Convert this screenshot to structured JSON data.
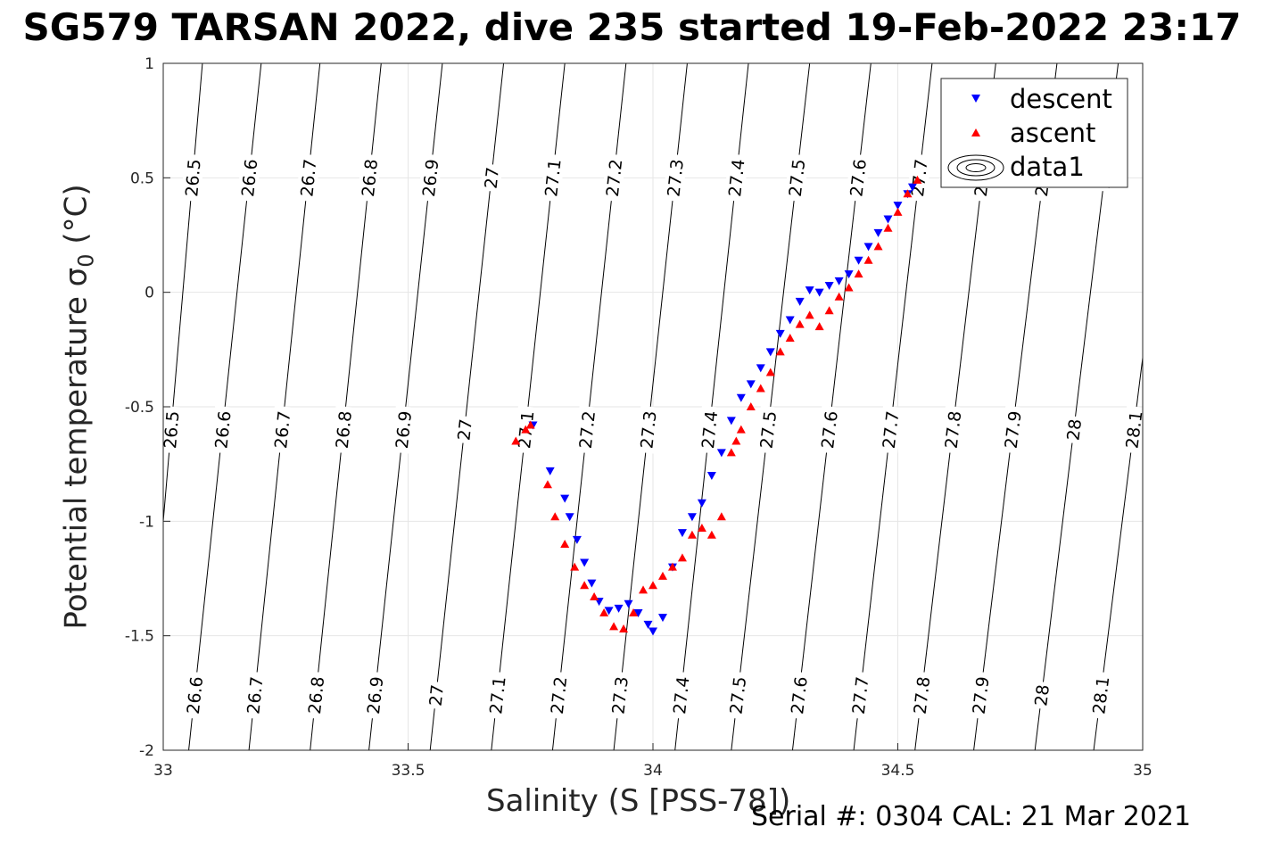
{
  "chart_data": {
    "type": "scatter",
    "title": "SG579 TARSAN 2022, dive 235 started 19-Feb-2022 23:17",
    "xlabel": "Salinity (S [PSS-78])",
    "ylabel_main": "Potential temperature ",
    "ylabel_sym": "σ",
    "ylabel_sub": "0",
    "ylabel_unit": " (°C)",
    "footer": "Serial #: 0304  CAL: 21 Mar 2021",
    "xlim": [
      33,
      35
    ],
    "ylim": [
      -2,
      1
    ],
    "xticks": [
      "33",
      "33.5",
      "34",
      "34.5",
      "35"
    ],
    "yticks": [
      "1",
      "0.5",
      "0",
      "-0.5",
      "-1",
      "-1.5",
      "-2"
    ],
    "grid": true,
    "legend_position": "top-right",
    "legend": [
      "descent",
      "ascent",
      "data1"
    ],
    "contours": {
      "levels": [
        "26.5",
        "26.6",
        "26.7",
        "26.8",
        "26.9",
        "27",
        "27.1",
        "27.2",
        "27.3",
        "27.4",
        "27.5",
        "27.6",
        "27.7",
        "27.8",
        "27.9",
        "28",
        "28.1"
      ],
      "s_at_theta_1": [
        33.08,
        33.2,
        33.32,
        33.445,
        33.57,
        33.695,
        33.82,
        33.945,
        34.07,
        34.195,
        34.32,
        34.445,
        34.57,
        34.7,
        34.825,
        34.95,
        35.075
      ],
      "s_at_theta_minus2": [
        32.96,
        33.052,
        33.175,
        33.3,
        33.42,
        33.545,
        33.67,
        33.795,
        33.92,
        34.045,
        34.16,
        34.285,
        34.41,
        34.535,
        34.655,
        34.78,
        34.9
      ],
      "label_rows_theta": [
        0.5,
        -0.6,
        -1.76
      ]
    },
    "series": [
      {
        "name": "descent",
        "color": "#0000ff",
        "marker": "triangle-down",
        "x": [
          33.755,
          33.79,
          33.82,
          33.83,
          33.845,
          33.86,
          33.875,
          33.89,
          33.91,
          33.93,
          33.95,
          33.97,
          33.99,
          34.0,
          34.02,
          34.04,
          34.06,
          34.08,
          34.1,
          34.12,
          34.14,
          34.16,
          34.18,
          34.2,
          34.22,
          34.24,
          34.26,
          34.28,
          34.3,
          34.32,
          34.34,
          34.36,
          34.38,
          34.4,
          34.42,
          34.44,
          34.46,
          34.48,
          34.5,
          34.52,
          34.53
        ],
        "y": [
          -0.58,
          -0.78,
          -0.9,
          -0.98,
          -1.08,
          -1.18,
          -1.27,
          -1.35,
          -1.39,
          -1.38,
          -1.36,
          -1.4,
          -1.45,
          -1.48,
          -1.42,
          -1.2,
          -1.05,
          -0.98,
          -0.92,
          -0.8,
          -0.7,
          -0.56,
          -0.46,
          -0.4,
          -0.33,
          -0.26,
          -0.18,
          -0.12,
          -0.04,
          0.01,
          0.0,
          0.03,
          0.05,
          0.08,
          0.14,
          0.2,
          0.26,
          0.32,
          0.38,
          0.43,
          0.46
        ]
      },
      {
        "name": "ascent",
        "color": "#ff0000",
        "marker": "triangle-up",
        "x": [
          33.72,
          33.74,
          33.75,
          33.785,
          33.8,
          33.82,
          33.84,
          33.86,
          33.88,
          33.9,
          33.92,
          33.94,
          33.96,
          33.98,
          34.0,
          34.02,
          34.04,
          34.06,
          34.08,
          34.1,
          34.12,
          34.14,
          34.16,
          34.17,
          34.18,
          34.2,
          34.22,
          34.24,
          34.26,
          34.28,
          34.3,
          34.32,
          34.34,
          34.36,
          34.38,
          34.4,
          34.42,
          34.44,
          34.46,
          34.48,
          34.5,
          34.52,
          34.54
        ],
        "y": [
          -0.65,
          -0.6,
          -0.58,
          -0.84,
          -0.98,
          -1.1,
          -1.2,
          -1.28,
          -1.33,
          -1.4,
          -1.46,
          -1.47,
          -1.4,
          -1.3,
          -1.28,
          -1.24,
          -1.2,
          -1.16,
          -1.06,
          -1.03,
          -1.06,
          -0.98,
          -0.7,
          -0.65,
          -0.6,
          -0.5,
          -0.42,
          -0.35,
          -0.26,
          -0.2,
          -0.14,
          -0.1,
          -0.15,
          -0.08,
          -0.02,
          0.02,
          0.08,
          0.14,
          0.2,
          0.28,
          0.35,
          0.43,
          0.49
        ]
      }
    ]
  }
}
